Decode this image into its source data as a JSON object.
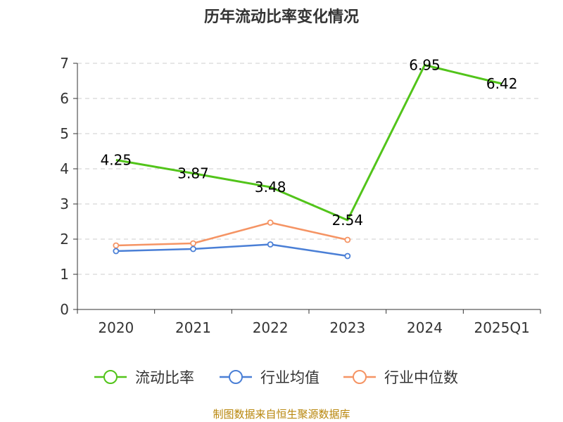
{
  "chart_data": {
    "type": "line",
    "title": "历年流动比率变化情况",
    "categories": [
      "2020",
      "2021",
      "2022",
      "2023",
      "2024",
      "2025Q1"
    ],
    "ylim": [
      0,
      7
    ],
    "yticks": [
      "0",
      "1",
      "2",
      "3",
      "4",
      "5",
      "6",
      "7"
    ],
    "grid": true,
    "legend_position": "bottom",
    "series": [
      {
        "name": "流动比率",
        "color": "#52c41a",
        "values": [
          4.25,
          3.87,
          3.48,
          2.54,
          6.95,
          6.42
        ],
        "labels": [
          "4.25",
          "3.87",
          "3.48",
          "2.54",
          "6.95",
          "6.42"
        ]
      },
      {
        "name": "行业均值",
        "color": "#4a7fd6",
        "values": [
          1.66,
          1.72,
          1.85,
          1.52,
          null,
          null
        ]
      },
      {
        "name": "行业中位数",
        "color": "#f59464",
        "values": [
          1.82,
          1.88,
          2.47,
          1.98,
          null,
          null
        ]
      }
    ]
  },
  "footer": {
    "source": "制图数据来自恒生聚源数据库"
  }
}
